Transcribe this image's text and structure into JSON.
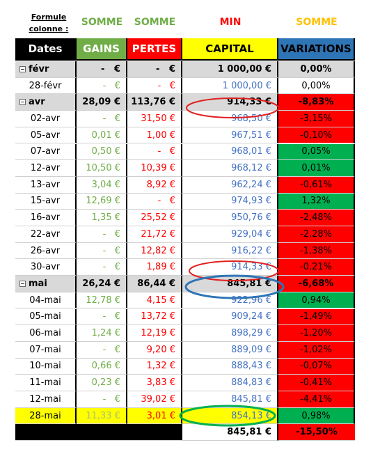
{
  "formula_row": {
    "label": "Formule colonne :",
    "functions": [
      "SOMME",
      "SOMME",
      "MIN",
      "SOMME"
    ]
  },
  "header": [
    "Dates",
    "GAINS",
    "PERTES",
    "CAPITAL",
    "VARIATIONS"
  ],
  "rows": [
    [
      "févr",
      "-   €",
      "-   €",
      "1 000,00 €",
      "0,00%"
    ],
    [
      "28-févr",
      "-   €",
      "-   €",
      "1 000,00 €",
      "0,00%"
    ],
    [
      "avr",
      "28,09 €",
      "113,76 €",
      "914,33 €",
      "-8,83%"
    ],
    [
      "02-avr",
      "-   €",
      "31,50 €",
      "968,50 €",
      "-3,15%"
    ],
    [
      "05-avr",
      "0,01 €",
      "1,00 €",
      "967,51 €",
      "-0,10%"
    ],
    [
      "07-avr",
      "0,50 €",
      "-   €",
      "968,01 €",
      "0,05%"
    ],
    [
      "12-avr",
      "10,50 €",
      "10,39 €",
      "968,12 €",
      "0,01%"
    ],
    [
      "13-avr",
      "3,04 €",
      "8,92 €",
      "962,24 €",
      "-0,61%"
    ],
    [
      "15-avr",
      "12,69 €",
      "-   €",
      "974,93 €",
      "1,32%"
    ],
    [
      "16-avr",
      "1,35 €",
      "25,52 €",
      "950,76 €",
      "-2,48%"
    ],
    [
      "22-avr",
      "-   €",
      "21,72 €",
      "929,04 €",
      "-2,28%"
    ],
    [
      "26-avr",
      "-   €",
      "12,82 €",
      "916,22 €",
      "-1,38%"
    ],
    [
      "30-avr",
      "-   €",
      "1,89 €",
      "914,33 €",
      "-0,21%"
    ],
    [
      "mai",
      "26,24 €",
      "86,44 €",
      "845,81 €",
      "-6,68%"
    ],
    [
      "04-mai",
      "12,78 €",
      "4,15 €",
      "922,96 €",
      "0,94%"
    ],
    [
      "05-mai",
      "-   €",
      "13,72 €",
      "909,24 €",
      "-1,49%"
    ],
    [
      "06-mai",
      "1,24 €",
      "12,19 €",
      "898,29 €",
      "-1,20%"
    ],
    [
      "07-mai",
      "-   €",
      "9,20 €",
      "889,09 €",
      "-1,02%"
    ],
    [
      "10-mai",
      "0,66 €",
      "1,32 €",
      "888,43 €",
      "-0,07%"
    ],
    [
      "11-mai",
      "0,23 €",
      "3,83 €",
      "884,83 €",
      "-0,41%"
    ],
    [
      "12-mai",
      "-   €",
      "39,02 €",
      "845,81 €",
      "-4,41%"
    ],
    [
      "28-mai",
      "11,33 €",
      "3,01 €",
      "854,13 €",
      "0,98%"
    ]
  ],
  "total": [
    "845,81 €",
    "-15,50%"
  ]
}
